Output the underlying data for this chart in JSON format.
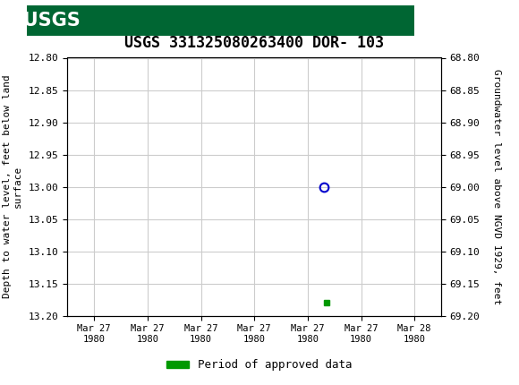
{
  "title": "USGS 331325080263400 DOR- 103",
  "header_bg_color": "#006633",
  "header_text": "USGS",
  "plot_bg_color": "#ffffff",
  "grid_color": "#cccccc",
  "font_family": "monospace",
  "left_ylabel": "Depth to water level, feet below land\nsurface",
  "right_ylabel": "Groundwater level above NGVD 1929, feet",
  "ylim_left": [
    12.8,
    13.2
  ],
  "ylim_right": [
    68.8,
    69.2
  ],
  "left_yticks": [
    12.8,
    12.85,
    12.9,
    12.95,
    13.0,
    13.05,
    13.1,
    13.15,
    13.2
  ],
  "right_yticks": [
    68.8,
    68.85,
    68.9,
    68.95,
    69.0,
    69.05,
    69.1,
    69.15,
    69.2
  ],
  "x_tick_labels": [
    "Mar 27\n1980",
    "Mar 27\n1980",
    "Mar 27\n1980",
    "Mar 27\n1980",
    "Mar 27\n1980",
    "Mar 27\n1980",
    "Mar 28\n1980"
  ],
  "x_tick_positions": [
    0,
    1,
    2,
    3,
    4,
    5,
    6
  ],
  "data_point_blue_x": 4.3,
  "data_point_blue_y": 13.0,
  "data_point_green_x": 4.35,
  "data_point_green_y": 13.18,
  "legend_label": "Period of approved data",
  "legend_color": "#009900",
  "point_blue_color": "#0000cc",
  "point_green_color": "#009900"
}
